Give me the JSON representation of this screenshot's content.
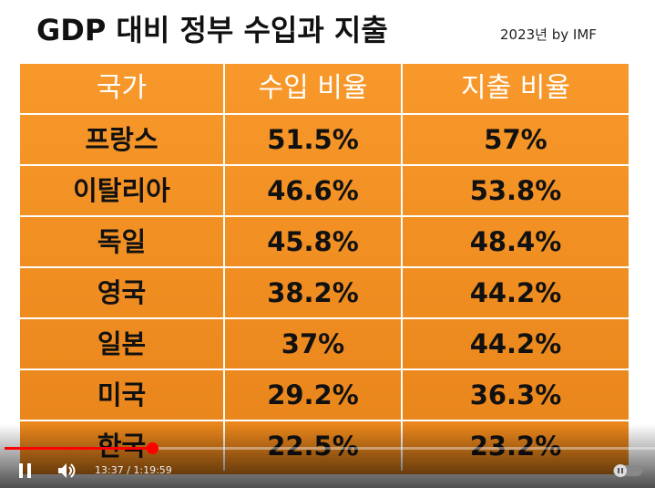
{
  "header": {
    "title": "GDP 대비 정부 수입과 지출",
    "subtitle": "2023년 by IMF"
  },
  "table": {
    "columns": [
      "국가",
      "수입 비율",
      "지출 비율"
    ],
    "rows": [
      [
        "프랑스",
        "51.5%",
        "57%"
      ],
      [
        "이탈리아",
        "46.6%",
        "53.8%"
      ],
      [
        "독일",
        "45.8%",
        "48.4%"
      ],
      [
        "영국",
        "38.2%",
        "44.2%"
      ],
      [
        "일본",
        "37%",
        "44.2%"
      ],
      [
        "미국",
        "29.2%",
        "36.3%"
      ],
      [
        "한국",
        "22.5%",
        "23.2%"
      ]
    ]
  },
  "player": {
    "time": "13:37 / 1:19:59"
  }
}
